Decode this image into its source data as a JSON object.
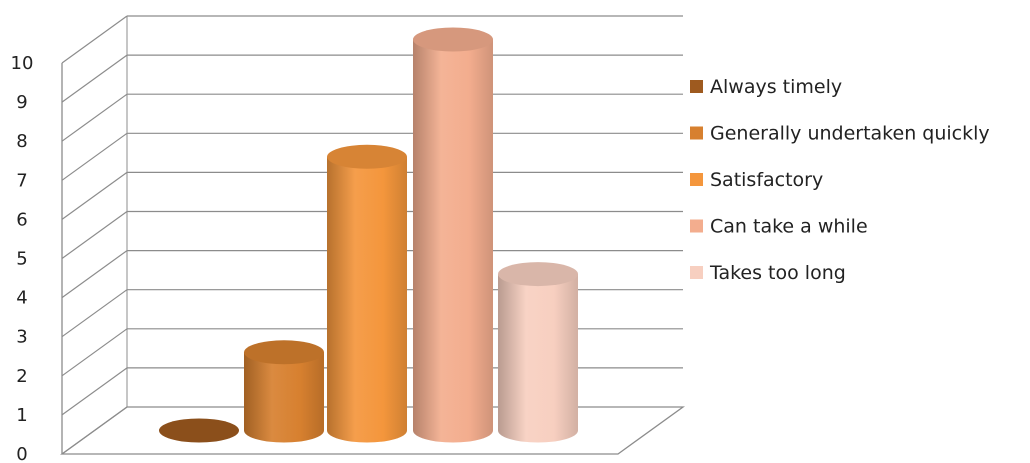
{
  "chart_data": {
    "type": "bar",
    "title": "",
    "xlabel": "",
    "ylabel": "",
    "ylim": [
      0,
      10
    ],
    "yticks": [
      0,
      1,
      2,
      3,
      4,
      5,
      6,
      7,
      8,
      9,
      10
    ],
    "grid": true,
    "legend_position": "right",
    "series": [
      {
        "name": "Always timely",
        "values": [
          0
        ],
        "color": "#9e5a1f"
      },
      {
        "name": "Generally undertaken quickly",
        "values": [
          2
        ],
        "color": "#d7802f"
      },
      {
        "name": "Satisfactory",
        "values": [
          7
        ],
        "color": "#f4963c"
      },
      {
        "name": "Can take a while",
        "values": [
          10
        ],
        "color": "#f3ad8e"
      },
      {
        "name": "Takes too long",
        "values": [
          4
        ],
        "color": "#f7cfc0"
      }
    ]
  }
}
